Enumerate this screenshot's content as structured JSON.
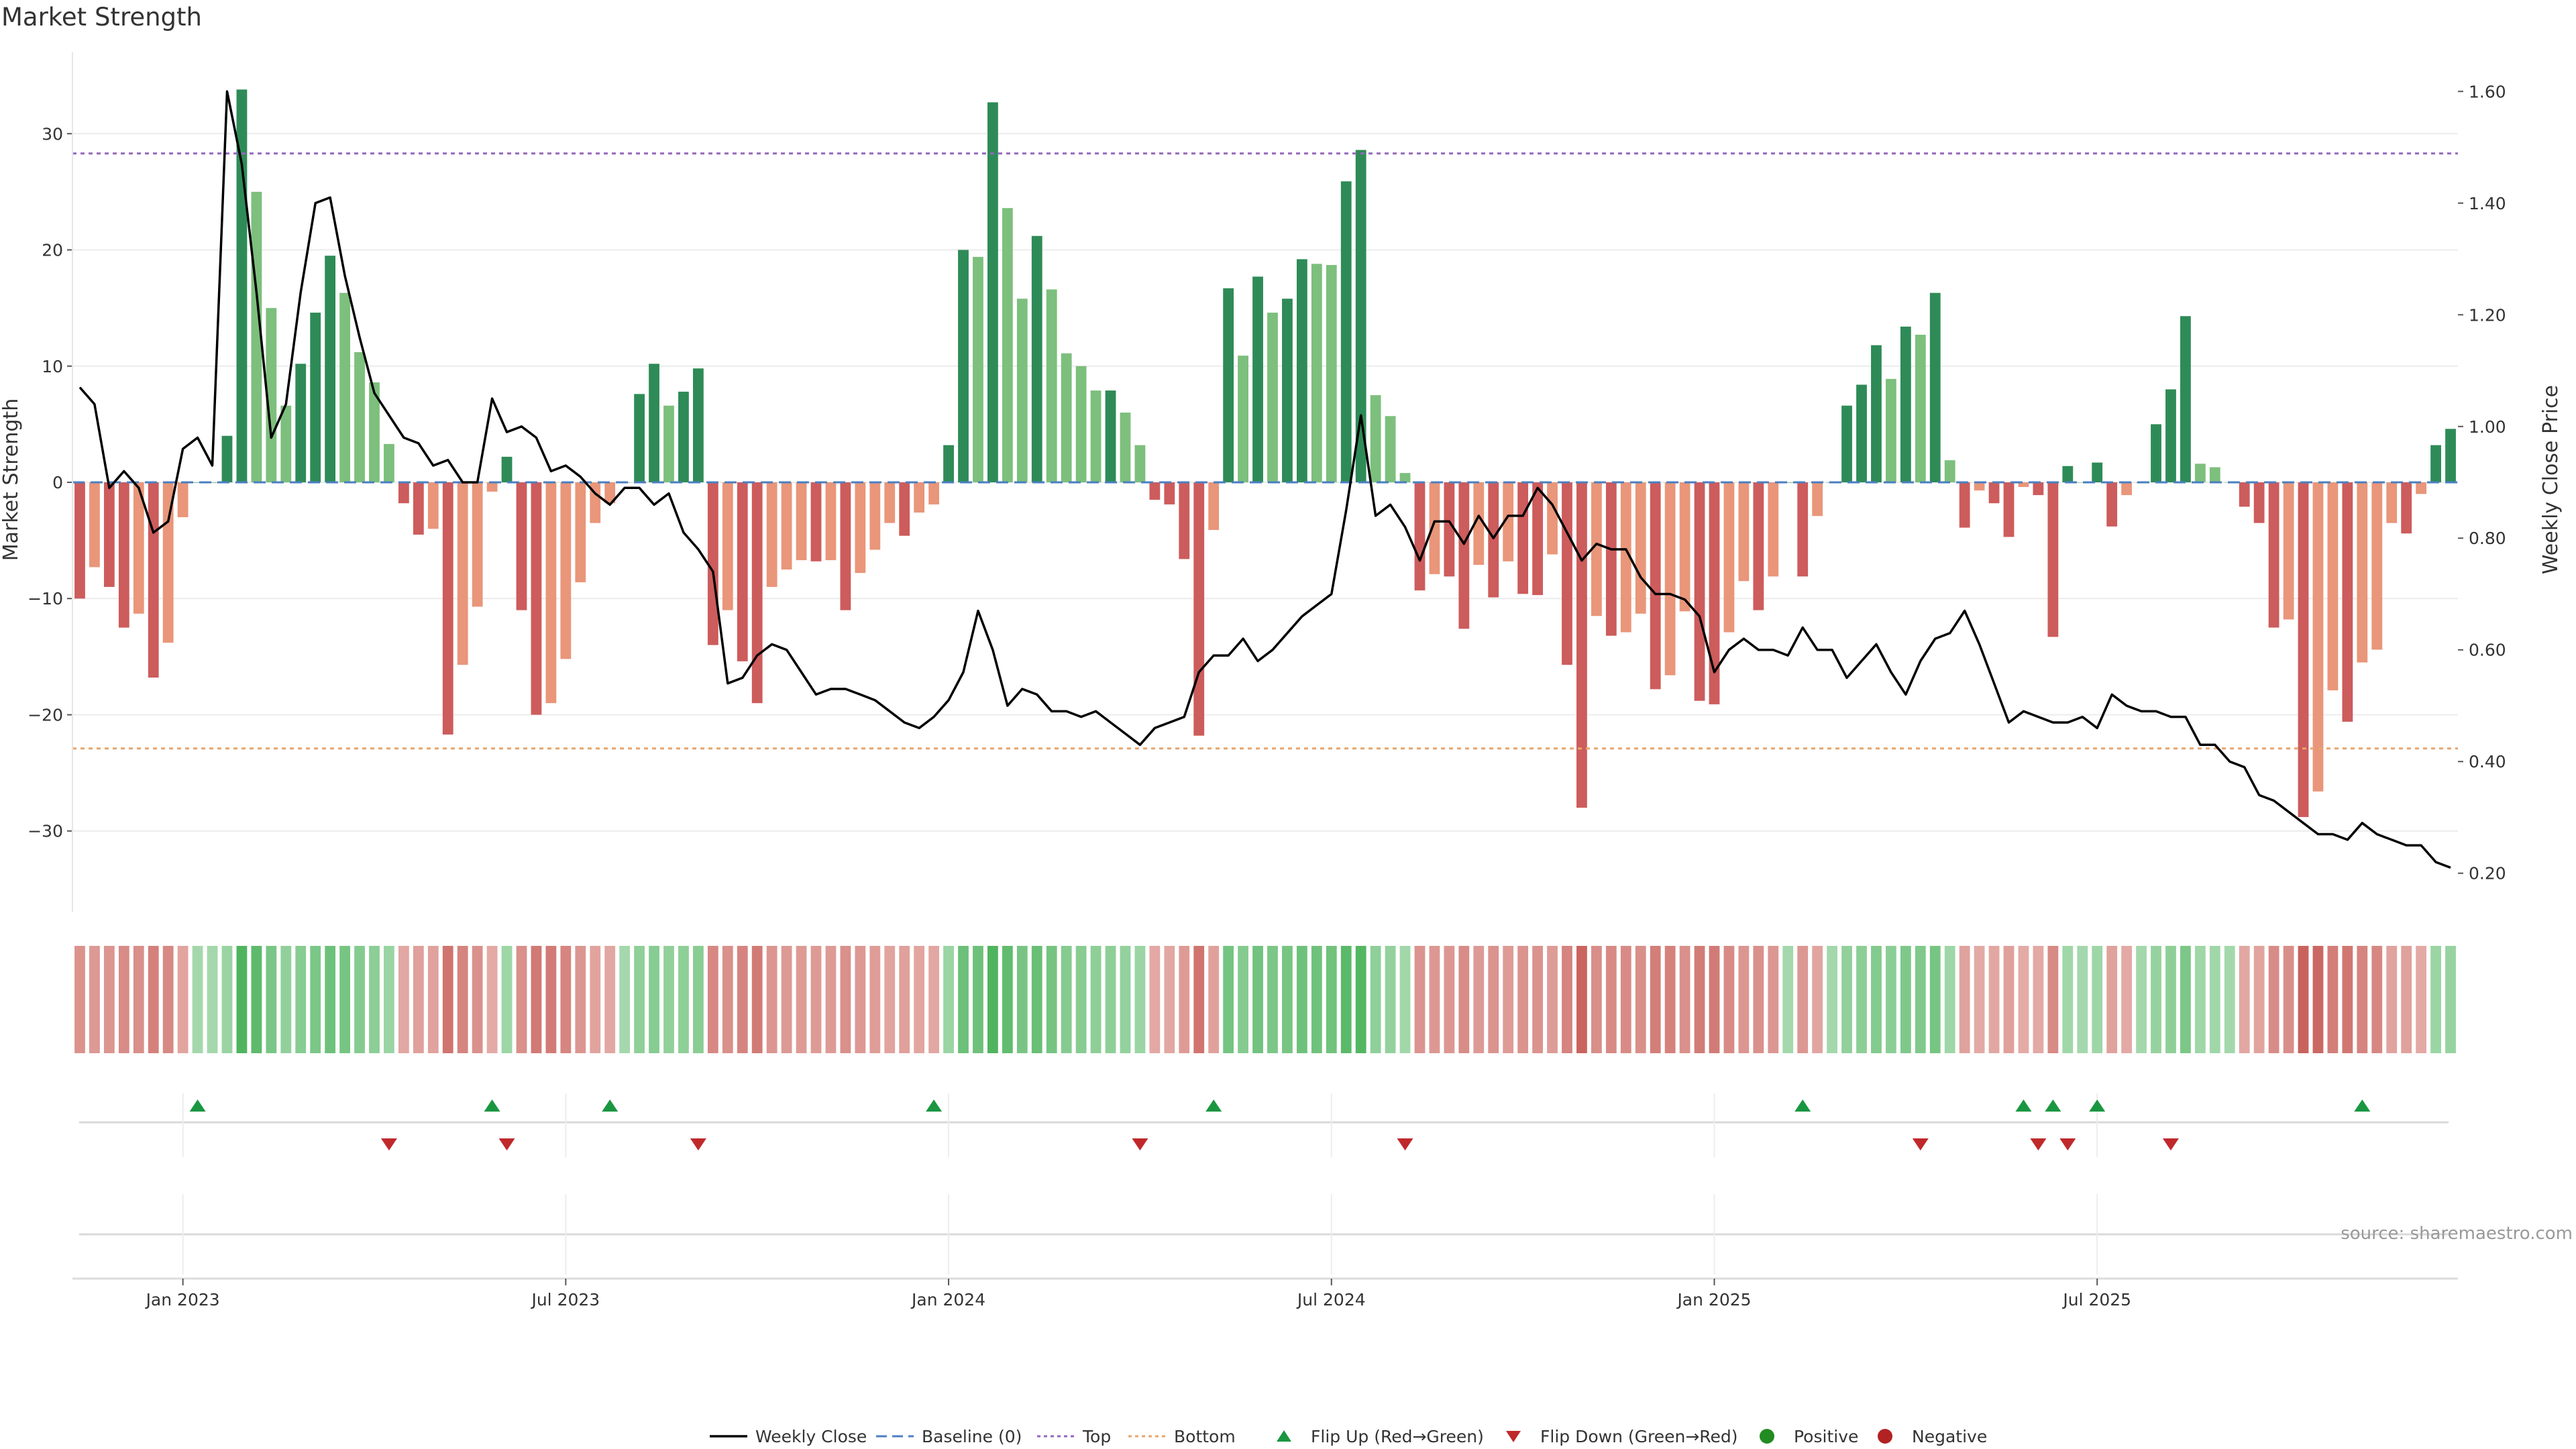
{
  "title": "Market Strength",
  "source": "source: sharemaestro.com",
  "colors": {
    "strong_green": "#2e8b57",
    "light_green": "#7dbf7d",
    "strong_red": "#cd5c5c",
    "light_red": "#e9967a",
    "top_line": "#9467bd",
    "bottom_line": "#e8a56b",
    "baseline": "#4a7fc1",
    "flip_up": "#1a9641",
    "flip_down": "#c0292b",
    "positive": "#228b22",
    "negative": "#b22222",
    "close_line": "#000000"
  },
  "chart_data": {
    "type": "bar",
    "title": "Market Strength",
    "ylabel_left": "Market Strength",
    "ylabel_right": "Weekly Close Price",
    "ylim_left": [
      -37,
      37
    ],
    "ylim_right": [
      0.13,
      1.67
    ],
    "yticks_left": [
      "30",
      "20",
      "10",
      "0",
      "−10",
      "−20",
      "−30"
    ],
    "yticks_right": [
      "1.60",
      "1.40",
      "1.20",
      "1.00",
      "0.80",
      "0.60",
      "0.40",
      "0.20"
    ],
    "x_ticks": [
      "Jan 2023",
      "Jul 2023",
      "Jan 2024",
      "Jul 2024",
      "Jan 2025",
      "Jul 2025"
    ],
    "x_tick_weeks": [
      7.5,
      33.5,
      59.5,
      85.5,
      111.5,
      137.5
    ],
    "top_level": 28.3,
    "bottom_level": -22.9,
    "baseline": 0,
    "strength": [
      -10,
      -7.3,
      -9,
      -12.5,
      -11.3,
      -16.8,
      -13.8,
      -3,
      0,
      0,
      4,
      33.8,
      25,
      15,
      6.6,
      10.2,
      14.6,
      19.5,
      16.3,
      11.2,
      8.6,
      3.3,
      -1.8,
      -4.5,
      -4,
      -21.7,
      -15.7,
      -10.7,
      -0.8,
      2.2,
      -11,
      -20,
      -19,
      -15.2,
      -8.6,
      -3.5,
      -1.8,
      0,
      7.6,
      10.2,
      6.6,
      7.8,
      9.8,
      -14,
      -11,
      -15.4,
      -19,
      -9,
      -7.5,
      -6.7,
      -6.8,
      -6.7,
      -11,
      -7.8,
      -5.8,
      -3.5,
      -4.6,
      -2.6,
      -1.9,
      3.2,
      20,
      19.4,
      32.7,
      23.6,
      15.8,
      21.2,
      16.6,
      11.1,
      10,
      7.9,
      7.9,
      6,
      3.2,
      -1.5,
      -1.9,
      -6.6,
      -21.8,
      -4.1,
      16.7,
      10.9,
      17.7,
      14.6,
      15.8,
      19.2,
      18.8,
      18.7,
      25.9,
      28.6,
      7.5,
      5.7,
      0.8,
      -9.3,
      -7.9,
      -8.1,
      -12.6,
      -7.1,
      -9.9,
      -6.8,
      -9.6,
      -9.7,
      -6.2,
      -15.7,
      -28,
      -11.5,
      -13.2,
      -12.9,
      -11.3,
      -17.8,
      -16.6,
      -11.1,
      -18.8,
      -19.1,
      -12.9,
      -8.5,
      -11,
      -8.1,
      0,
      -8.1,
      -2.9,
      0,
      6.6,
      8.4,
      11.8,
      8.9,
      13.4,
      12.7,
      16.3,
      1.9,
      -3.9,
      -0.7,
      -1.8,
      -4.7,
      -0.4,
      -1.1,
      -13.3,
      1.4,
      0,
      1.7,
      -3.8,
      -1.1,
      0,
      5,
      8,
      14.3,
      1.6,
      1.3,
      0,
      -2.1,
      -3.5,
      -12.5,
      -11.8,
      -28.8,
      -26.6,
      -17.9,
      -20.6,
      -15.5,
      -14.4,
      -3.5,
      -4.4,
      -1,
      3.2,
      4.6
    ],
    "weekly_close": [
      1.07,
      1.04,
      0.89,
      0.92,
      0.89,
      0.81,
      0.83,
      0.96,
      0.98,
      0.93,
      1.6,
      1.47,
      1.24,
      0.98,
      1.04,
      1.24,
      1.4,
      1.41,
      1.27,
      1.16,
      1.06,
      1.02,
      0.98,
      0.97,
      0.93,
      0.94,
      0.9,
      0.9,
      1.05,
      0.99,
      1.0,
      0.98,
      0.92,
      0.93,
      0.91,
      0.88,
      0.86,
      0.89,
      0.89,
      0.86,
      0.88,
      0.81,
      0.78,
      0.74,
      0.54,
      0.55,
      0.59,
      0.61,
      0.6,
      0.56,
      0.52,
      0.53,
      0.53,
      0.52,
      0.51,
      0.49,
      0.47,
      0.46,
      0.48,
      0.51,
      0.56,
      0.67,
      0.6,
      0.5,
      0.53,
      0.52,
      0.49,
      0.49,
      0.48,
      0.49,
      0.47,
      0.45,
      0.43,
      0.46,
      0.47,
      0.48,
      0.56,
      0.59,
      0.59,
      0.62,
      0.58,
      0.6,
      0.63,
      0.66,
      0.68,
      0.7,
      0.85,
      1.02,
      0.84,
      0.86,
      0.82,
      0.76,
      0.83,
      0.83,
      0.79,
      0.84,
      0.8,
      0.84,
      0.84,
      0.89,
      0.86,
      0.81,
      0.76,
      0.79,
      0.78,
      0.78,
      0.73,
      0.7,
      0.7,
      0.69,
      0.66,
      0.56,
      0.6,
      0.62,
      0.6,
      0.6,
      0.59,
      0.64,
      0.6,
      0.6,
      0.55,
      0.58,
      0.61,
      0.56,
      0.52,
      0.58,
      0.62,
      0.63,
      0.67,
      0.61,
      0.54,
      0.47,
      0.49,
      0.48,
      0.47,
      0.47,
      0.48,
      0.46,
      0.52,
      0.5,
      0.49,
      0.49,
      0.48,
      0.48,
      0.43,
      0.43,
      0.4,
      0.39,
      0.34,
      0.33,
      0.31,
      0.29,
      0.27,
      0.27,
      0.26,
      0.29,
      0.27,
      0.26,
      0.25,
      0.25,
      0.22,
      0.21
    ],
    "flip_up_weeks": [
      8,
      28,
      36,
      58,
      77,
      117,
      132,
      134,
      137,
      155
    ],
    "flip_down_weeks": [
      21,
      29,
      42,
      72,
      90,
      125,
      133,
      135,
      142
    ],
    "legend": [
      "Weekly Close",
      "Baseline (0)",
      "Top",
      "Bottom",
      "Flip Up (Red→Green)",
      "Flip Down (Green→Red)",
      "Positive",
      "Negative"
    ],
    "legend_position": "bottom-center",
    "grid": true
  }
}
